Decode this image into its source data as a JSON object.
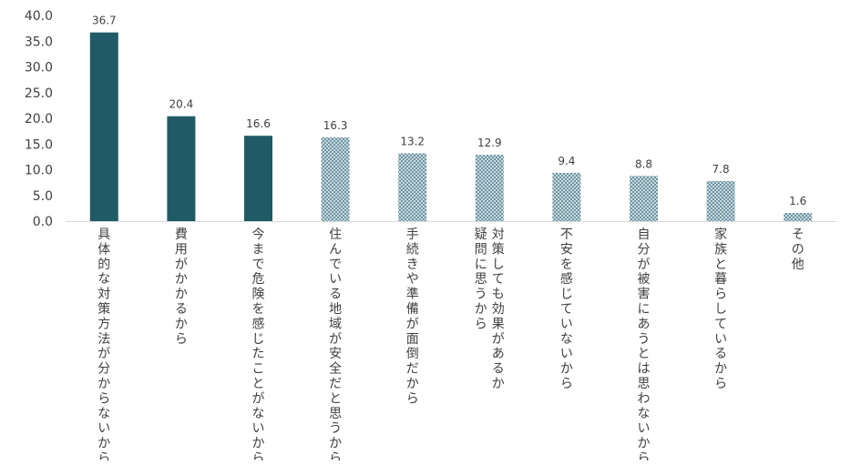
{
  "chart_data": {
    "type": "bar",
    "title": "",
    "xlabel": "",
    "ylabel": "",
    "ylim": [
      0,
      40
    ],
    "yticks": [
      "0.0",
      "5.0",
      "10.0",
      "15.0",
      "20.0",
      "25.0",
      "30.0",
      "35.0",
      "40.0"
    ],
    "grid": false,
    "legend": "none",
    "categories": [
      [
        "具体的な対策方法が分からないから"
      ],
      [
        "費用がかかるから"
      ],
      [
        "今まで危険を感じたことがないから"
      ],
      [
        "住んでいる地域が安全だと思うから"
      ],
      [
        "手続きや準備が面倒だから"
      ],
      [
        "対策しても効果があるか",
        "疑問に思うから"
      ],
      [
        "不安を感じていないから"
      ],
      [
        "自分が被害にあうとは思わないから"
      ],
      [
        "家族と暮らしているから"
      ],
      [
        "その他"
      ]
    ],
    "values": [
      36.7,
      20.4,
      16.6,
      16.3,
      13.2,
      12.9,
      9.4,
      8.8,
      7.8,
      1.6
    ],
    "data_labels": [
      "36.7",
      "20.4",
      "16.6",
      "16.3",
      "13.2",
      "12.9",
      "9.4",
      "8.8",
      "7.8",
      "1.6"
    ],
    "bar_styles": [
      "solid",
      "solid",
      "solid",
      "pattern",
      "pattern",
      "pattern",
      "pattern",
      "pattern",
      "pattern",
      "pattern"
    ],
    "colors": {
      "solid": "#215a67",
      "pattern_light": "#c9dbe1",
      "pattern_dark": "#6d949f",
      "axis": "#d9d9d9",
      "text": "#404040"
    }
  }
}
